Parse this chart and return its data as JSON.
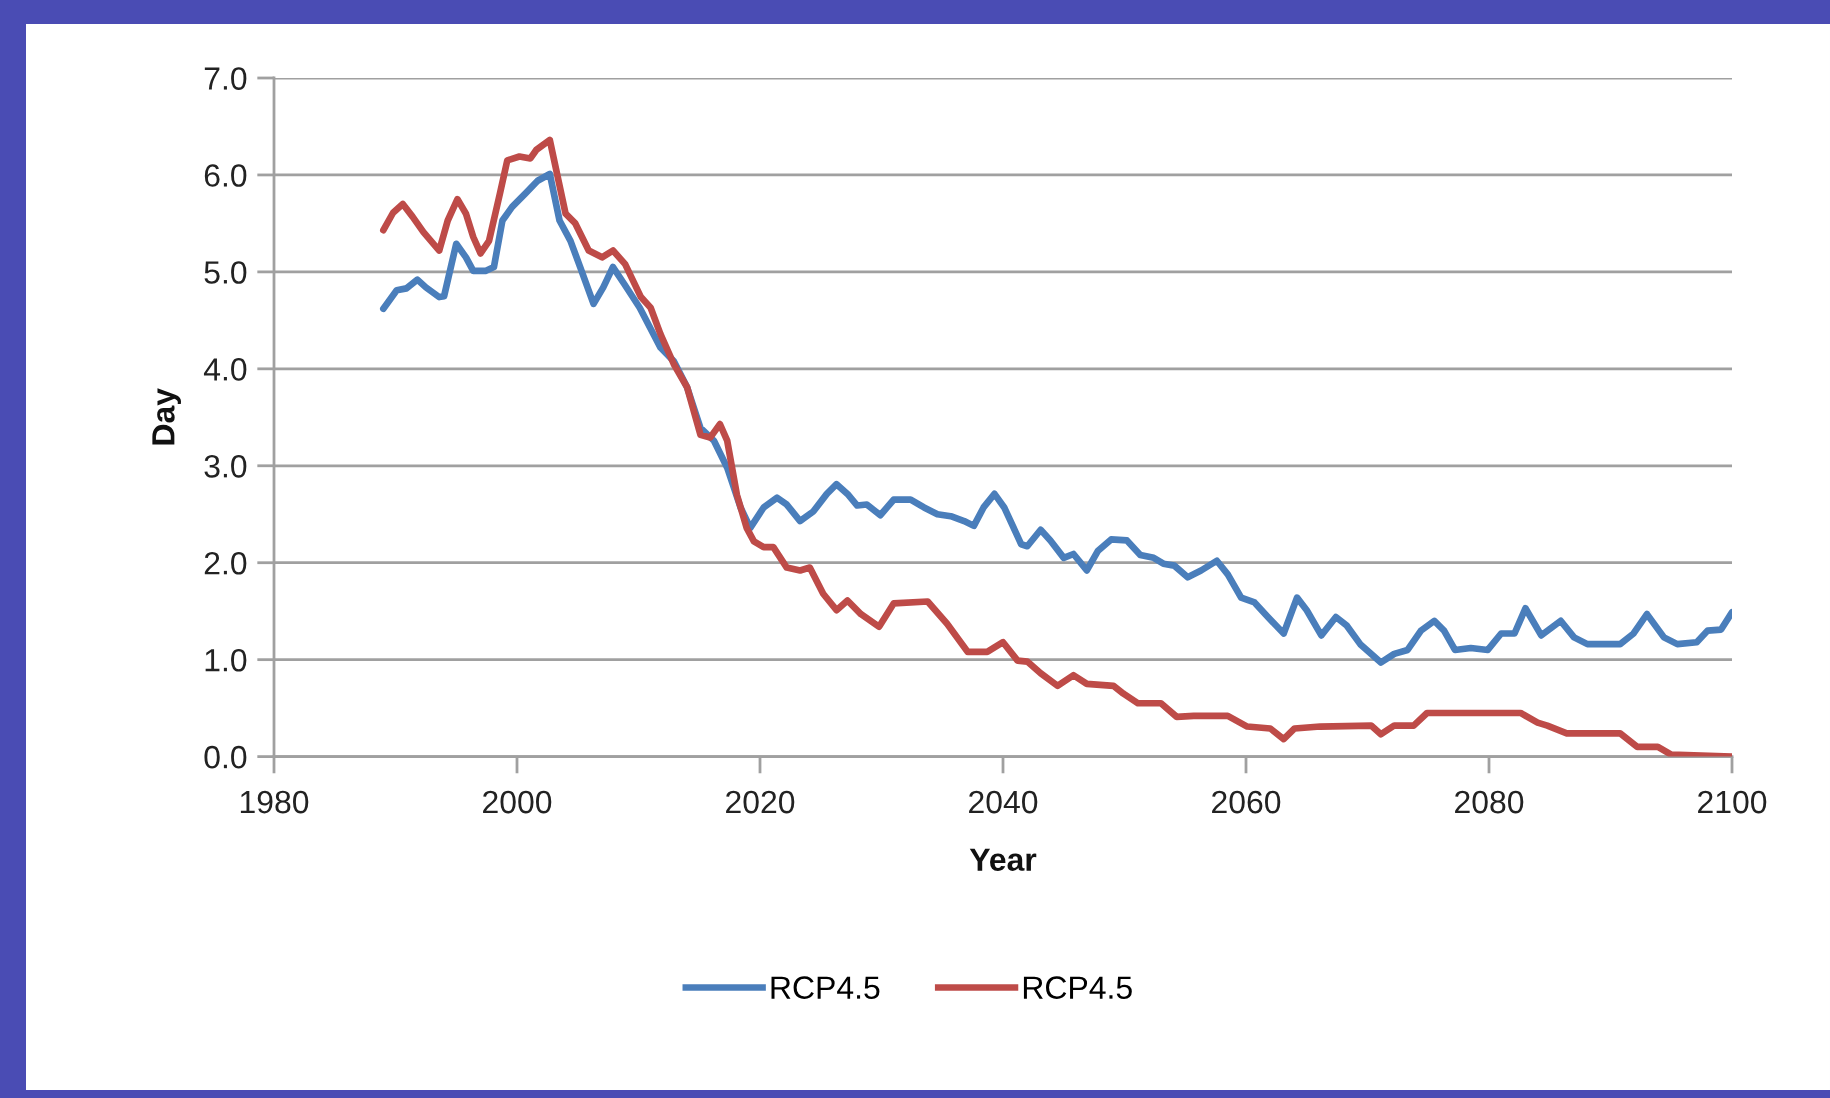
{
  "chart_data": {
    "type": "line",
    "xlabel": "Year",
    "ylabel": "Day",
    "xlim": [
      1980,
      2100
    ],
    "xticks": [
      1980,
      2000,
      2020,
      2040,
      2060,
      2080,
      2100
    ],
    "ylim": [
      0,
      7
    ],
    "yticks": [
      {
        "value": 0,
        "label": "0.0"
      },
      {
        "value": 1,
        "label": "1.0"
      },
      {
        "value": 2,
        "label": "2.0"
      },
      {
        "value": 3,
        "label": "3.0"
      },
      {
        "value": 4,
        "label": "4.0"
      },
      {
        "value": 5,
        "label": "5.0"
      },
      {
        "value": 6,
        "label": "6.0"
      },
      {
        "value": 7,
        "label": "7.0"
      }
    ],
    "grid": "y",
    "legend": "bottom",
    "line_style": "solid",
    "series": [
      {
        "name": "RCP4.5",
        "color": "#4a7ebb",
        "x": [
          1989.0,
          1990.1,
          1990.9,
          1991.8,
          1992.5,
          1993.6,
          1994.0,
          1995.0,
          1995.8,
          1996.4,
          1997.4,
          1998.1,
          1998.8,
          1999.6,
          2000.7,
          2001.7,
          2002.7,
          2003.5,
          2004.4,
          2005.2,
          2006.3,
          2007.1,
          2007.9,
          2008.8,
          2010.1,
          2011.8,
          2012.9,
          2014.0,
          2015.1,
          2016.2,
          2017.3,
          2018.4,
          2019.2,
          2020.3,
          2021.4,
          2022.2,
          2023.3,
          2024.4,
          2025.5,
          2026.3,
          2027.2,
          2028.0,
          2028.8,
          2029.9,
          2031.0,
          2032.4,
          2033.5,
          2034.6,
          2035.7,
          2036.8,
          2037.6,
          2038.4,
          2039.3,
          2040.1,
          2041.5,
          2042.0,
          2043.1,
          2043.9,
          2045.0,
          2045.8,
          2046.9,
          2047.8,
          2048.9,
          2050.2,
          2051.3,
          2052.4,
          2053.2,
          2054.1,
          2055.2,
          2056.3,
          2057.6,
          2058.5,
          2059.6,
          2060.7,
          2061.8,
          2063.1,
          2064.2,
          2065.0,
          2066.2,
          2067.4,
          2068.3,
          2069.4,
          2071.1,
          2072.2,
          2073.3,
          2074.4,
          2075.5,
          2076.3,
          2077.2,
          2078.5,
          2079.9,
          2081.0,
          2082.1,
          2083.0,
          2084.3,
          2085.9,
          2087.0,
          2088.1,
          2090.8,
          2091.9,
          2093.0,
          2094.4,
          2095.5,
          2097.1,
          2098.0,
          2099.1,
          2100.0
        ],
        "values": [
          4.62,
          4.81,
          4.83,
          4.92,
          4.84,
          4.74,
          4.75,
          5.29,
          5.15,
          5.01,
          5.01,
          5.05,
          5.53,
          5.67,
          5.81,
          5.94,
          6.01,
          5.53,
          5.32,
          5.05,
          4.67,
          4.84,
          5.05,
          4.88,
          4.63,
          4.22,
          4.08,
          3.81,
          3.39,
          3.26,
          2.98,
          2.57,
          2.36,
          2.57,
          2.67,
          2.6,
          2.43,
          2.53,
          2.71,
          2.81,
          2.71,
          2.59,
          2.6,
          2.49,
          2.65,
          2.65,
          2.57,
          2.5,
          2.48,
          2.43,
          2.38,
          2.57,
          2.71,
          2.57,
          2.19,
          2.17,
          2.34,
          2.23,
          2.05,
          2.09,
          1.92,
          2.12,
          2.24,
          2.23,
          2.08,
          2.05,
          1.99,
          1.97,
          1.85,
          1.92,
          2.02,
          1.88,
          1.64,
          1.59,
          1.44,
          1.27,
          1.64,
          1.51,
          1.25,
          1.44,
          1.35,
          1.16,
          0.97,
          1.06,
          1.1,
          1.3,
          1.4,
          1.3,
          1.1,
          1.12,
          1.1,
          1.27,
          1.27,
          1.53,
          1.25,
          1.4,
          1.23,
          1.16,
          1.16,
          1.27,
          1.47,
          1.23,
          1.16,
          1.18,
          1.3,
          1.31,
          1.49
        ]
      },
      {
        "name": "RCP4.5",
        "color": "#be4b48",
        "x": [
          1989.0,
          1989.8,
          1990.6,
          1991.4,
          1992.3,
          1993.6,
          1994.3,
          1995.1,
          1995.8,
          1996.4,
          1997.0,
          1997.7,
          1998.6,
          1999.2,
          2000.2,
          2001.1,
          2001.6,
          2002.7,
          2004.0,
          2004.8,
          2005.9,
          2007.0,
          2007.9,
          2008.9,
          2010.2,
          2011.0,
          2011.8,
          2012.9,
          2014.0,
          2015.1,
          2015.9,
          2016.7,
          2017.3,
          2018.1,
          2018.9,
          2019.5,
          2020.3,
          2021.1,
          2022.2,
          2023.3,
          2024.1,
          2025.2,
          2026.3,
          2027.2,
          2028.3,
          2029.8,
          2031.0,
          2033.8,
          2035.4,
          2037.1,
          2038.7,
          2040.0,
          2041.2,
          2042.0,
          2043.1,
          2044.5,
          2045.8,
          2046.9,
          2049.1,
          2049.9,
          2051.1,
          2053.0,
          2054.3,
          2055.7,
          2058.5,
          2060.1,
          2062.0,
          2063.1,
          2064.0,
          2066.1,
          2070.3,
          2071.1,
          2072.2,
          2073.8,
          2074.9,
          2082.6,
          2084.0,
          2084.8,
          2086.4,
          2090.8,
          2092.2,
          2093.9,
          2095.0,
          2100.0
        ],
        "values": [
          5.43,
          5.61,
          5.7,
          5.57,
          5.41,
          5.22,
          5.53,
          5.75,
          5.6,
          5.36,
          5.19,
          5.32,
          5.81,
          6.15,
          6.19,
          6.17,
          6.26,
          6.36,
          5.6,
          5.5,
          5.22,
          5.15,
          5.22,
          5.08,
          4.74,
          4.63,
          4.36,
          4.05,
          3.81,
          3.32,
          3.29,
          3.43,
          3.26,
          2.7,
          2.36,
          2.22,
          2.16,
          2.16,
          1.95,
          1.92,
          1.95,
          1.68,
          1.51,
          1.61,
          1.47,
          1.34,
          1.58,
          1.6,
          1.37,
          1.08,
          1.08,
          1.18,
          0.99,
          0.98,
          0.86,
          0.73,
          0.84,
          0.75,
          0.73,
          0.65,
          0.55,
          0.55,
          0.41,
          0.42,
          0.42,
          0.31,
          0.29,
          0.18,
          0.29,
          0.31,
          0.32,
          0.23,
          0.32,
          0.32,
          0.45,
          0.45,
          0.35,
          0.32,
          0.24,
          0.24,
          0.1,
          0.1,
          0.02,
          0.0
        ]
      }
    ]
  }
}
